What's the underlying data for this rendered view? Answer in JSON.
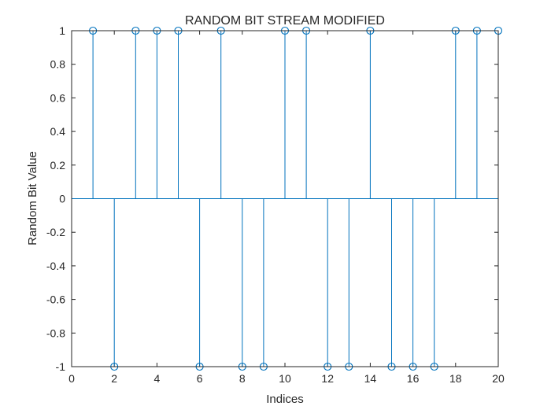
{
  "chart_data": {
    "type": "stem",
    "title": "RANDOM BIT STREAM MODIFIED",
    "xlabel": "Indices",
    "ylabel": "Random Bit Value",
    "xlim": [
      0,
      20
    ],
    "ylim": [
      -1,
      1
    ],
    "x_ticks": [
      0,
      2,
      4,
      6,
      8,
      10,
      12,
      14,
      16,
      18,
      20
    ],
    "y_ticks": [
      -1,
      -0.8,
      -0.6,
      -0.4,
      -0.2,
      0,
      0.2,
      0.4,
      0.6,
      0.8,
      1
    ],
    "grid": false,
    "marker": "circle",
    "color": "#0072BD",
    "series": [
      {
        "x": [
          1,
          2,
          3,
          4,
          5,
          6,
          7,
          8,
          9,
          10,
          11,
          12,
          13,
          14,
          15,
          16,
          17,
          18,
          19,
          20
        ],
        "y": [
          1,
          -1,
          1,
          1,
          1,
          -1,
          1,
          -1,
          -1,
          1,
          1,
          -1,
          -1,
          1,
          -1,
          -1,
          -1,
          1,
          1,
          1
        ]
      }
    ]
  }
}
